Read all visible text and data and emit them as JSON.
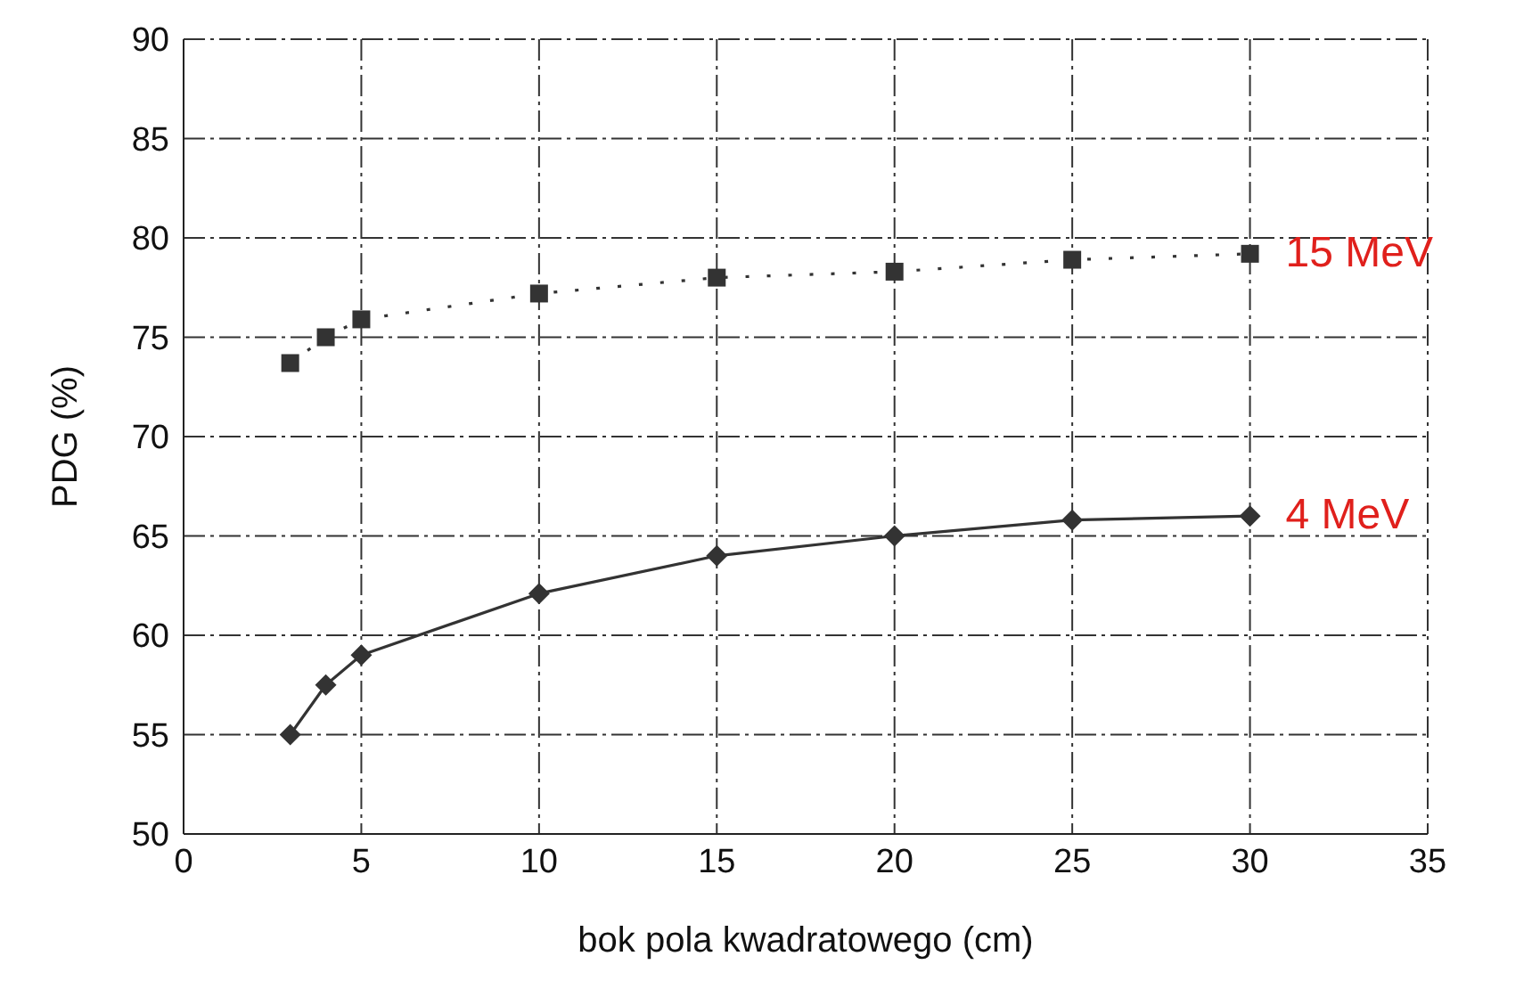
{
  "chart_data": {
    "type": "line",
    "xlabel": "bok pola kwadratowego (cm)",
    "ylabel": "PDG (%)",
    "x": [
      3,
      4,
      5,
      10,
      15,
      20,
      25,
      30
    ],
    "xlim": [
      0,
      35
    ],
    "xticks": [
      0,
      5,
      10,
      15,
      20,
      25,
      30,
      35
    ],
    "ylim": [
      50,
      90
    ],
    "yticks": [
      50,
      55,
      60,
      65,
      70,
      75,
      80,
      85,
      90
    ],
    "grid": true,
    "legend": false,
    "series": [
      {
        "name": "15 MeV",
        "color": "#333333",
        "marker": "square",
        "line_style": "dotted",
        "values": [
          73.7,
          75.0,
          75.9,
          77.2,
          78.0,
          78.3,
          78.9,
          79.2
        ]
      },
      {
        "name": "4 MeV",
        "color": "#333333",
        "marker": "diamond",
        "line_style": "solid",
        "values": [
          55,
          57.5,
          59,
          62.1,
          64,
          65,
          65.8,
          66
        ]
      }
    ]
  }
}
